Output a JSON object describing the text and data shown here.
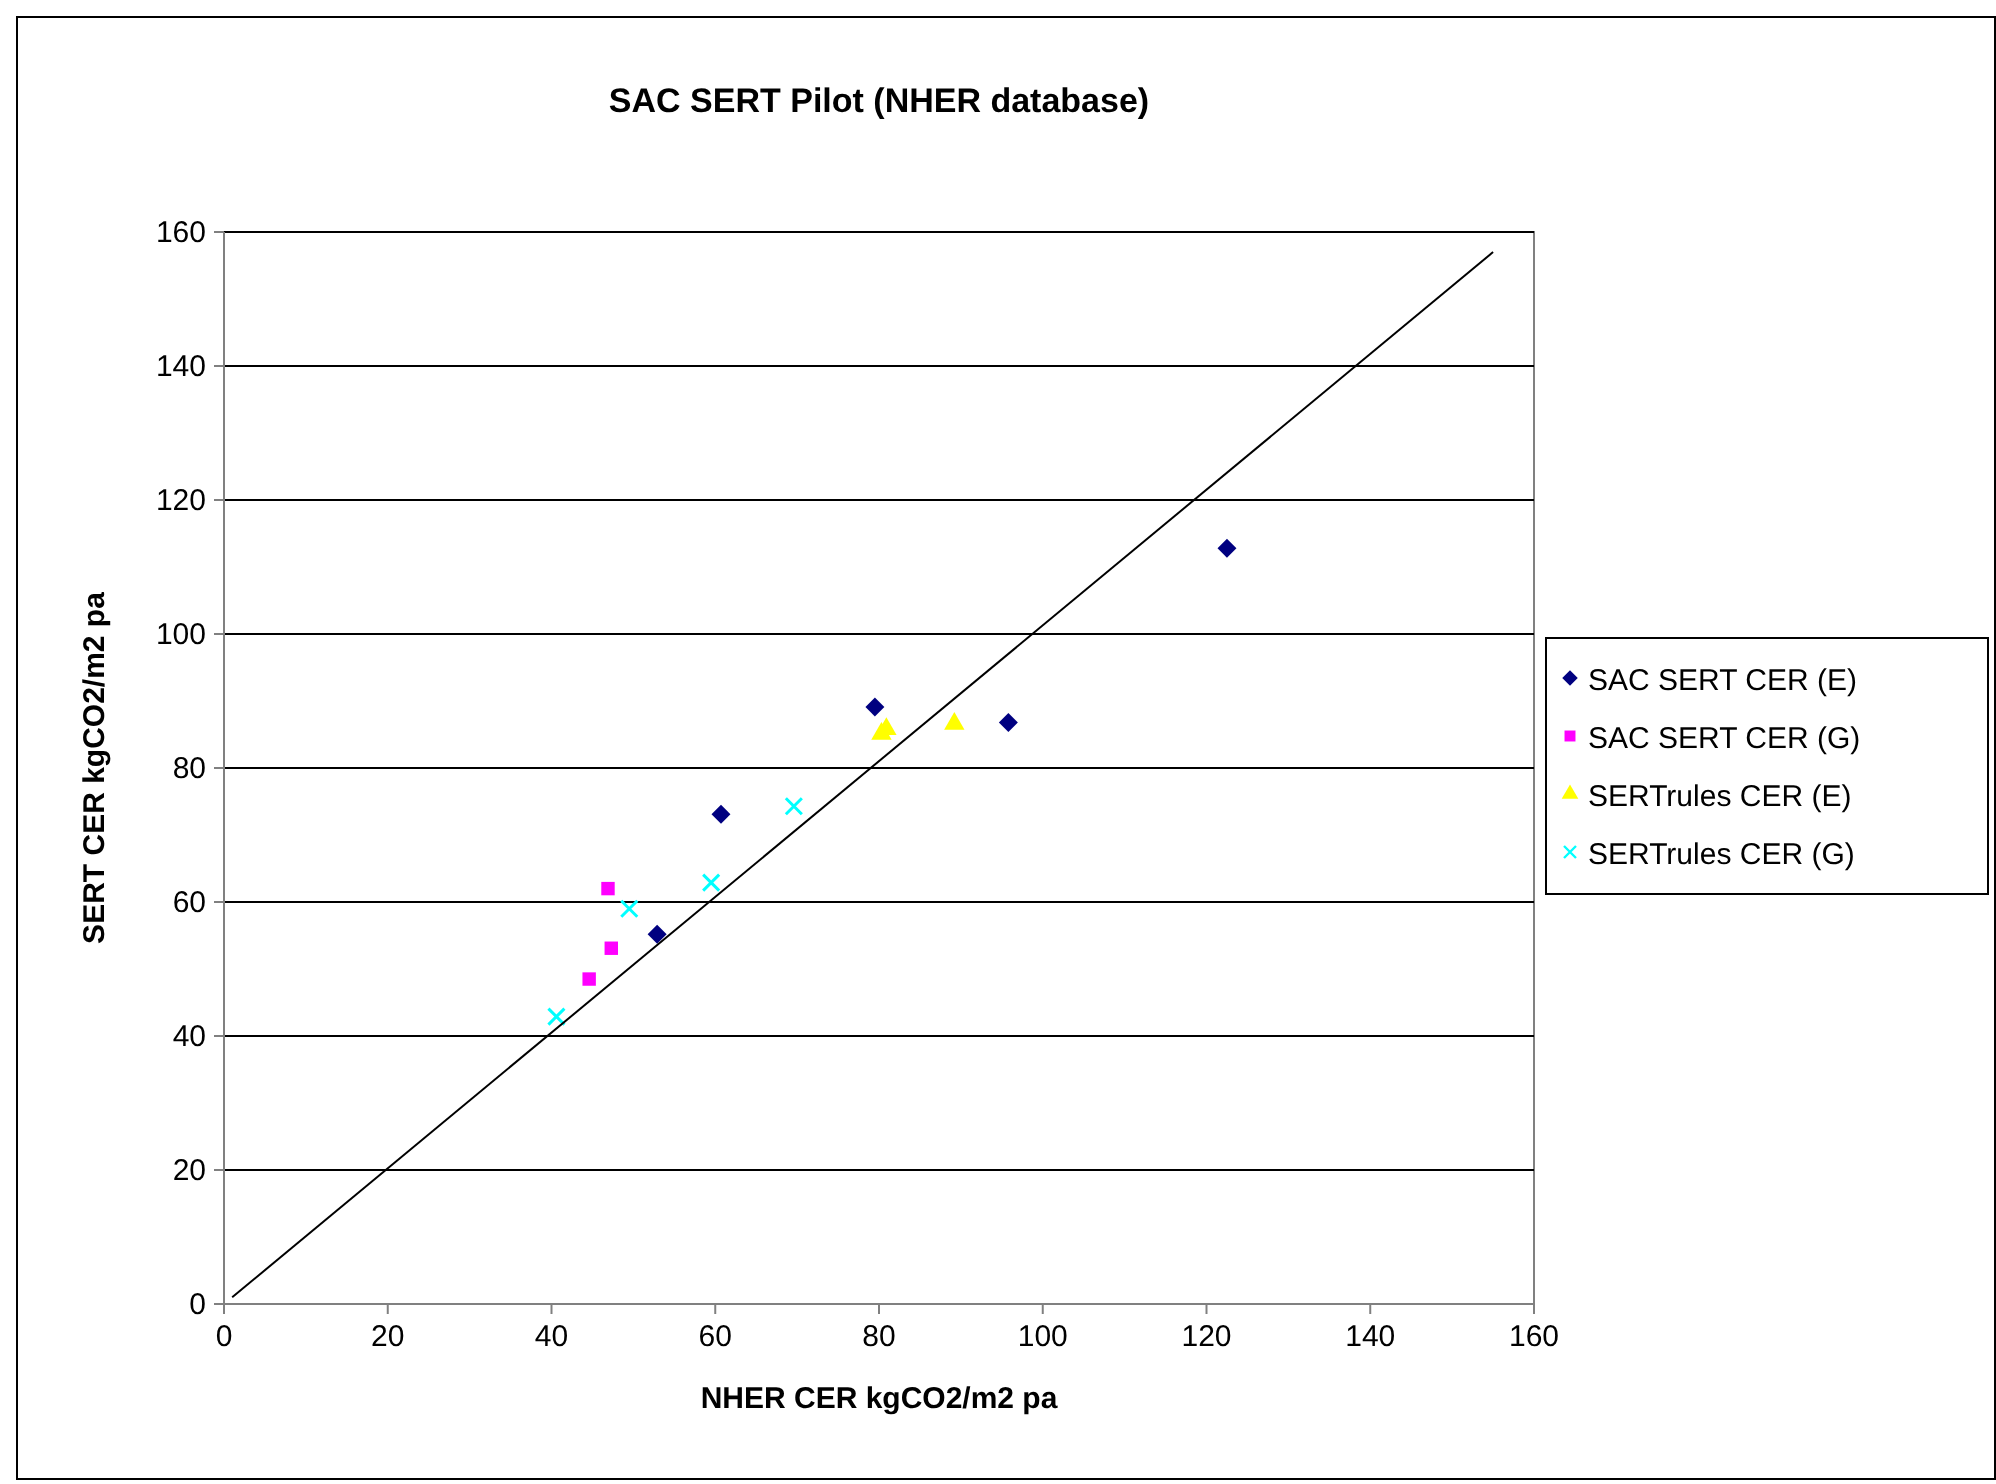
{
  "chart_data": {
    "type": "scatter",
    "title": "SAC SERT Pilot (NHER database)",
    "xlabel": "NHER CER kgCO2/m2 pa",
    "ylabel": "SERT CER kgCO2/m2 pa",
    "xlim": [
      0,
      160
    ],
    "ylim": [
      0,
      160
    ],
    "xticks": [
      0,
      20,
      40,
      60,
      80,
      100,
      120,
      140,
      160
    ],
    "yticks": [
      0,
      20,
      40,
      60,
      80,
      100,
      120,
      140,
      160
    ],
    "grid": "y",
    "legend": "right",
    "series": [
      {
        "name": "SAC SERT CER (E)",
        "color": "#000080",
        "marker": "diamond",
        "x": [
          52.9,
          60.7,
          79.5,
          95.8,
          122.5
        ],
        "values": [
          55.2,
          73.1,
          89.1,
          86.8,
          112.8
        ]
      },
      {
        "name": "SAC SERT CER (G)",
        "color": "#ff00ff",
        "marker": "square",
        "x": [
          44.6,
          47.3,
          46.9
        ],
        "values": [
          48.5,
          53.1,
          62.0
        ]
      },
      {
        "name": "SERTrules CER (E)",
        "color": "#ffff00",
        "marker": "triangle",
        "x": [
          80.3,
          80.9,
          89.2
        ],
        "values": [
          85.1,
          85.8,
          86.6
        ]
      },
      {
        "name": "SERTrules CER (G)",
        "color": "#00ffff",
        "marker": "cross",
        "x": [
          40.6,
          49.5,
          59.5,
          69.6
        ],
        "values": [
          42.9,
          59.0,
          62.9,
          74.3
        ]
      },
      {
        "type": "line",
        "color": "#000000",
        "line_style": "solid",
        "x": [
          1,
          155
        ],
        "values": [
          1,
          157
        ]
      }
    ]
  }
}
